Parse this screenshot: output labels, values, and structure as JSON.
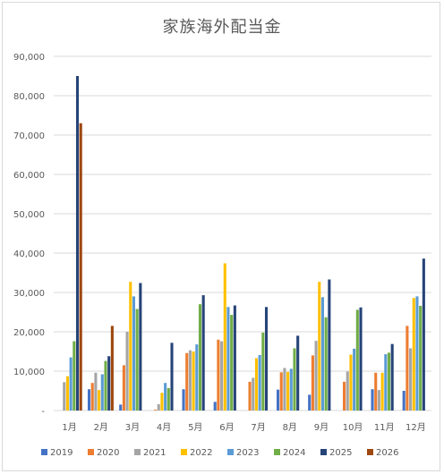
{
  "chart_data": {
    "type": "bar",
    "title": "家族海外配当金",
    "categories": [
      "1月",
      "2月",
      "3月",
      "4月",
      "5月",
      "6月",
      "7月",
      "8月",
      "9月",
      "10月",
      "11月",
      "12月"
    ],
    "ylim": [
      0,
      90000
    ],
    "yticks": [
      "-",
      "10,000",
      "20,000",
      "30,000",
      "40,000",
      "50,000",
      "60,000",
      "70,000",
      "80,000",
      "90,000"
    ],
    "grid": true,
    "legend_position": "bottom",
    "series": [
      {
        "name": "2019",
        "color": "#4472C4",
        "values": [
          0,
          5400,
          1500,
          0,
          5400,
          2200,
          0,
          5300,
          4000,
          0,
          5400,
          5000
        ]
      },
      {
        "name": "2020",
        "color": "#ED7D31",
        "values": [
          0,
          7000,
          11500,
          200,
          14600,
          18000,
          7300,
          9700,
          14000,
          7300,
          9600,
          21500
        ]
      },
      {
        "name": "2021",
        "color": "#A5A5A5",
        "values": [
          7200,
          9600,
          20000,
          1600,
          15300,
          17600,
          8300,
          10800,
          17700,
          9900,
          5200,
          15800
        ]
      },
      {
        "name": "2022",
        "color": "#FFC000",
        "values": [
          8700,
          5200,
          32700,
          4500,
          15000,
          37400,
          13300,
          9800,
          32700,
          14200,
          9600,
          28600
        ]
      },
      {
        "name": "2023",
        "color": "#5B9BD5",
        "values": [
          13500,
          9200,
          29000,
          7000,
          16800,
          26300,
          14100,
          10600,
          28800,
          15700,
          14300,
          29000
        ]
      },
      {
        "name": "2024",
        "color": "#70AD47",
        "values": [
          17600,
          12600,
          25800,
          5700,
          27000,
          24300,
          19800,
          15800,
          23700,
          25600,
          14700,
          26600
        ]
      },
      {
        "name": "2025",
        "color": "#264478",
        "values": [
          85000,
          13800,
          32400,
          17200,
          29300,
          26700,
          26300,
          19000,
          33300,
          26200,
          16900,
          38600
        ]
      },
      {
        "name": "2026",
        "color": "#9E480E",
        "values": [
          73000,
          21500,
          0,
          0,
          0,
          0,
          0,
          0,
          0,
          0,
          0,
          0
        ]
      }
    ]
  }
}
